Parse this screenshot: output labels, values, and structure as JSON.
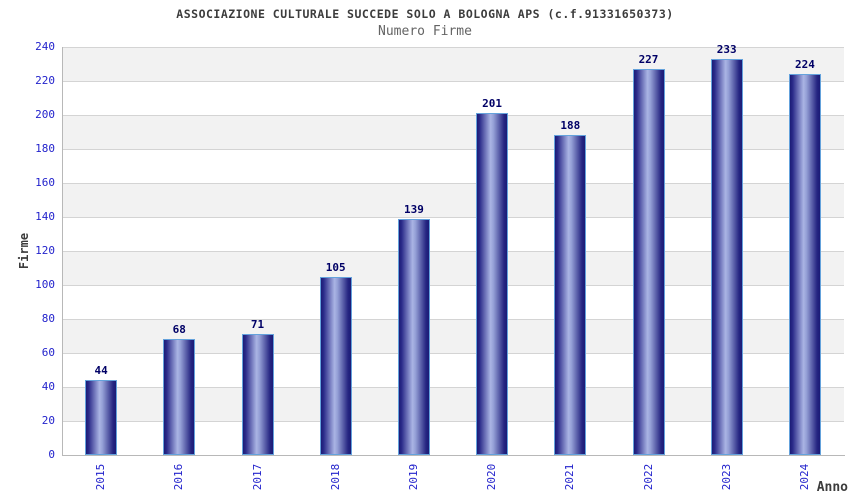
{
  "chart_data": {
    "type": "bar",
    "title": "ASSOCIAZIONE CULTURALE SUCCEDE SOLO A BOLOGNA APS (c.f.91331650373)",
    "subtitle": "Numero Firme",
    "xlabel": "Anno",
    "ylabel": "Firme",
    "categories": [
      "2015",
      "2016",
      "2017",
      "2018",
      "2019",
      "2020",
      "2021",
      "2022",
      "2023",
      "2024"
    ],
    "values": [
      44,
      68,
      71,
      105,
      139,
      201,
      188,
      227,
      233,
      224
    ],
    "ylim": [
      0,
      240
    ],
    "ytick_step": 20,
    "grid": true,
    "band_fill": true,
    "legend": "none"
  },
  "colors": {
    "bar_dark": "#1b1b76",
    "bar_mid": "#2b2b8a",
    "bar_light": "#aab4e4",
    "bar_border": "#64a2dc",
    "value_label": "#000066",
    "tick_label": "#2323cc",
    "band_gray": "#f2f2f2",
    "gridline": "#d4d4d4",
    "axis_line": "#b8b8b8",
    "title_text": "#3c3c3c",
    "subtitle_text": "#646464"
  }
}
